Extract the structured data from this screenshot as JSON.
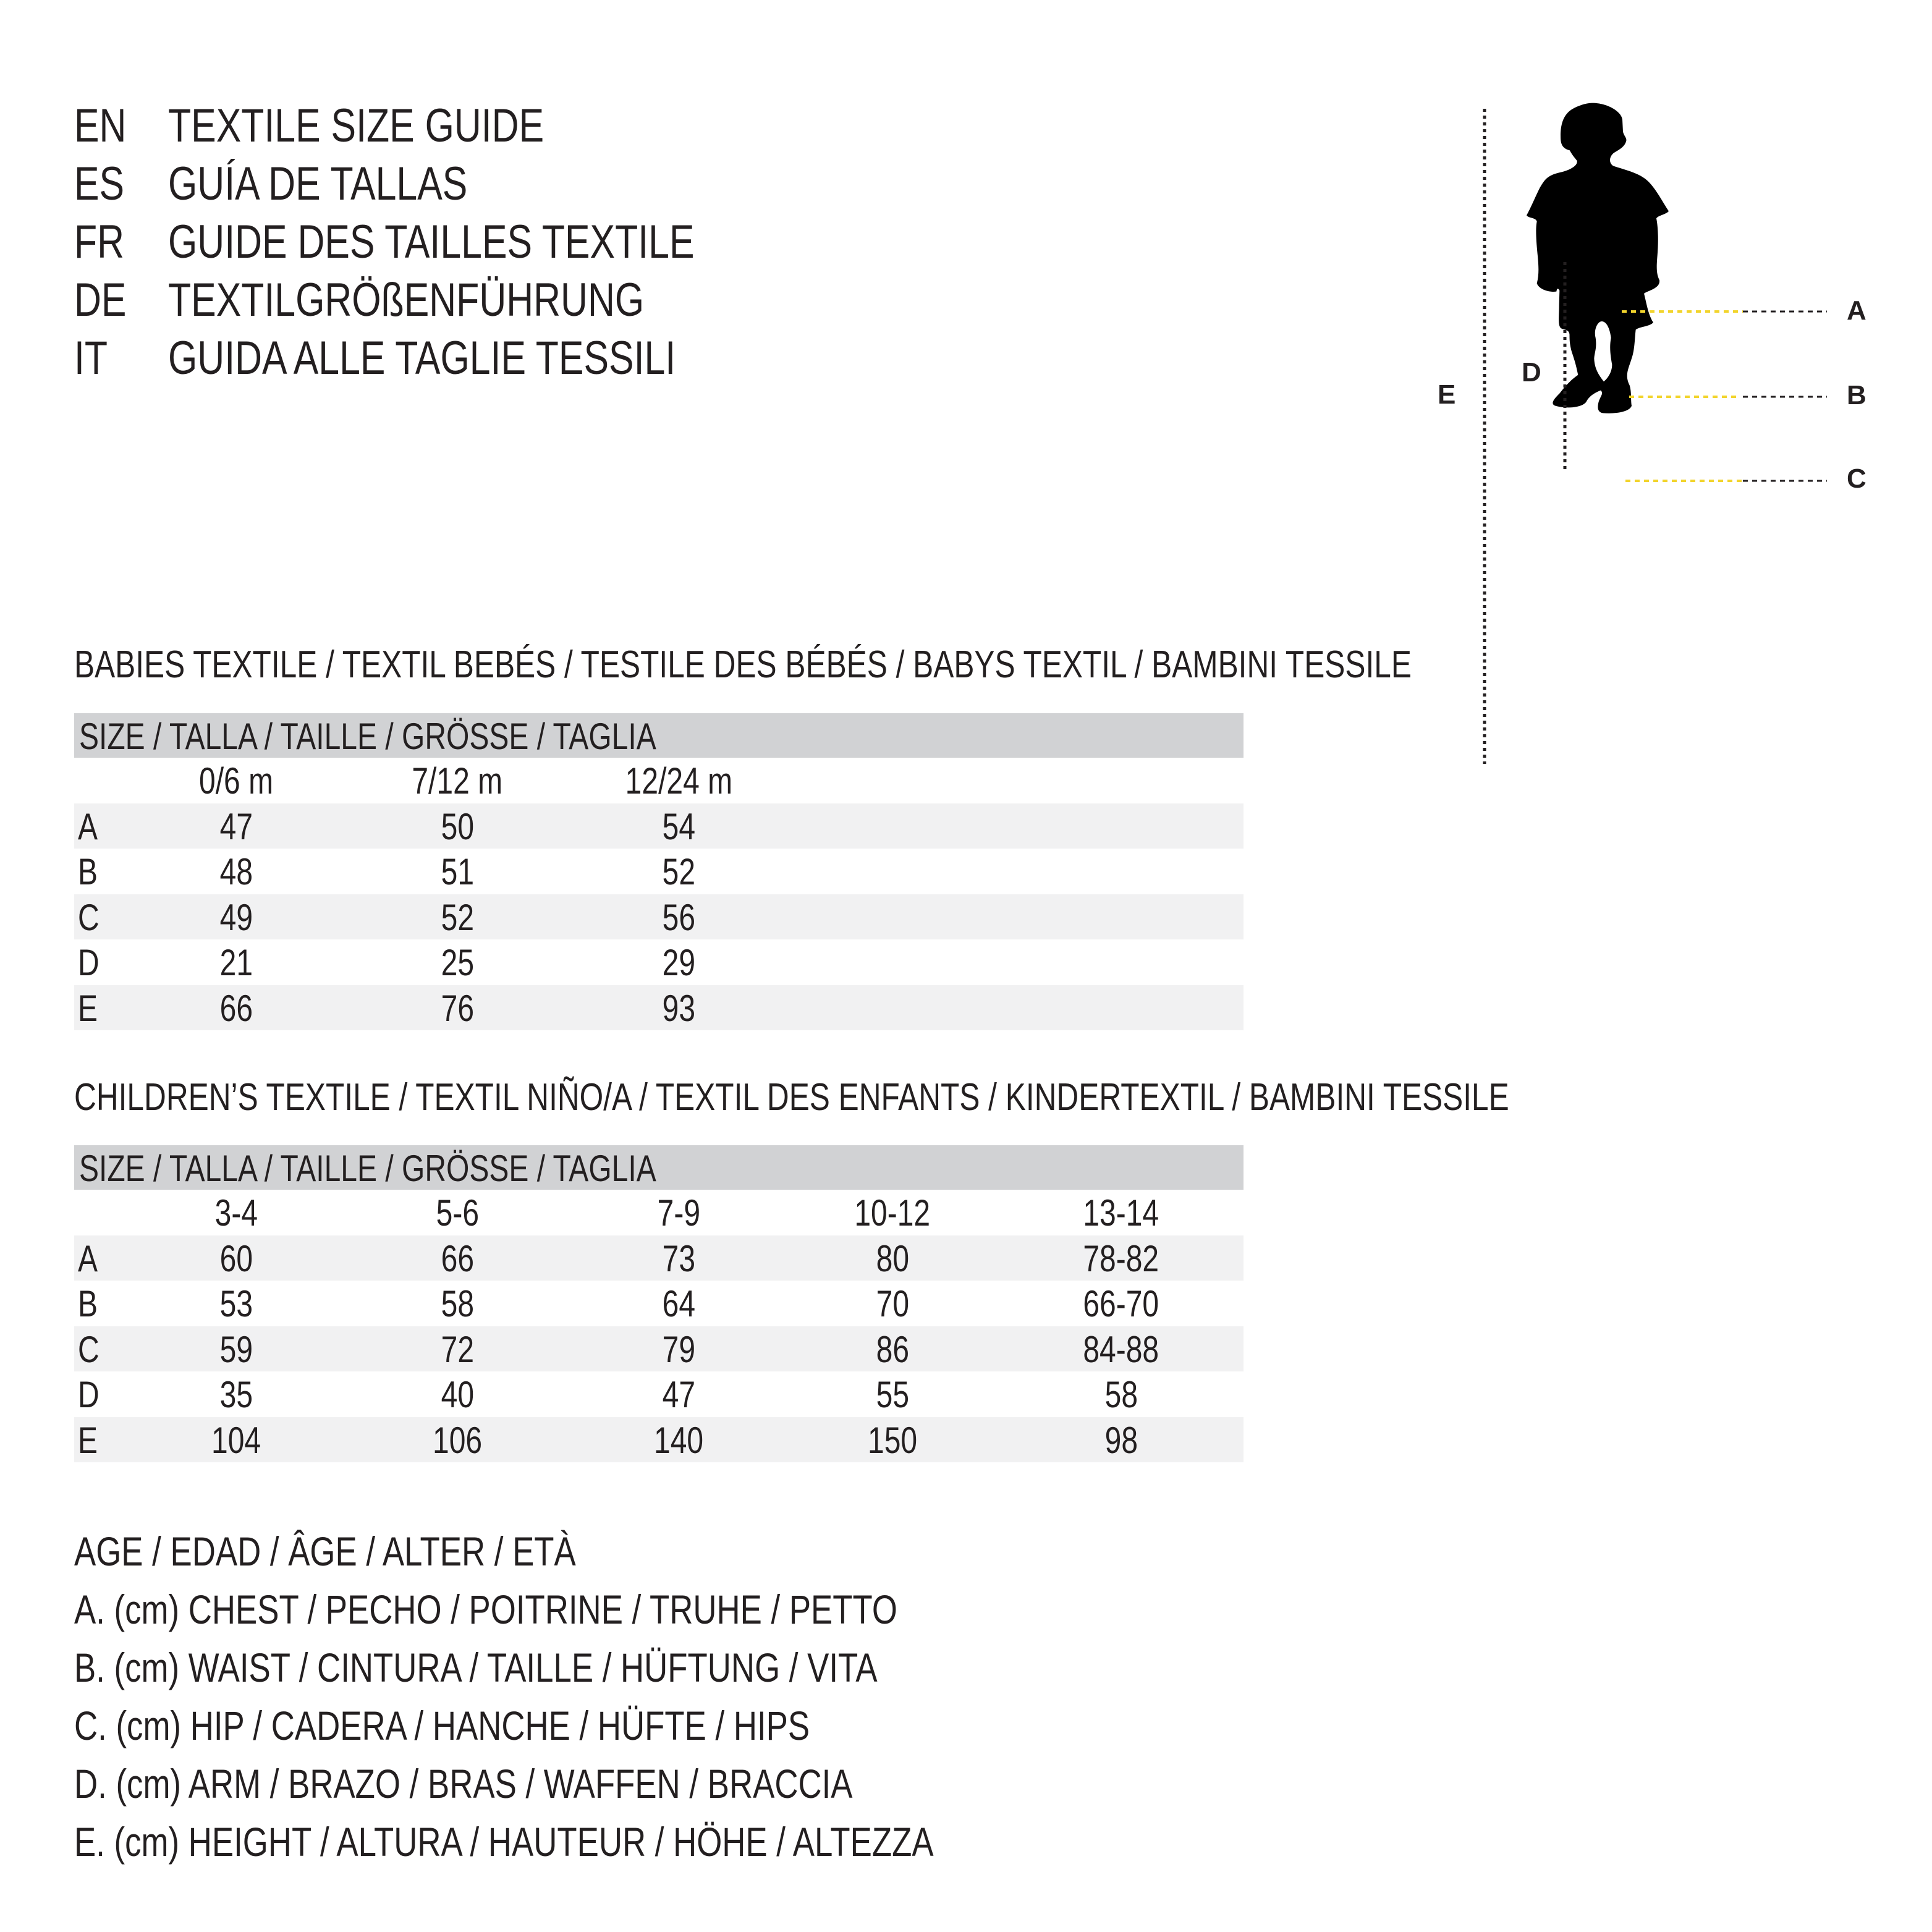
{
  "titles": [
    {
      "code": "EN",
      "text": "TEXTILE SIZE GUIDE"
    },
    {
      "code": "ES",
      "text": "GUÍA DE TALLAS"
    },
    {
      "code": "FR",
      "text": "GUIDE DES TAILLES TEXTILE"
    },
    {
      "code": "DE",
      "text": "TEXTILGRÖßENFÜHRUNG"
    },
    {
      "code": "IT",
      "text": "GUIDA ALLE TAGLIE TESSILI"
    }
  ],
  "babies": {
    "title": "BABIES TEXTILE / TEXTIL BEBÉS / TESTILE DES BÉBÉS / BABYS TEXTIL / BAMBINI TESSILE",
    "header": "SIZE / TALLA / TAILLE / GRÖSSE / TAGLIA",
    "columns": [
      "0/6 m",
      "7/12 m",
      "12/24 m"
    ],
    "rows": [
      {
        "label": "A",
        "values": [
          "47",
          "50",
          "54"
        ]
      },
      {
        "label": "B",
        "values": [
          "48",
          "51",
          "52"
        ]
      },
      {
        "label": "C",
        "values": [
          "49",
          "52",
          "56"
        ]
      },
      {
        "label": "D",
        "values": [
          "21",
          "25",
          "29"
        ]
      },
      {
        "label": "E",
        "values": [
          "66",
          "76",
          "93"
        ]
      }
    ]
  },
  "children": {
    "title": "CHILDREN’S TEXTILE / TEXTIL NIÑO/A / TEXTIL DES ENFANTS / KINDERTEXTIL / BAMBINI TESSILE",
    "header": "SIZE / TALLA / TAILLE / GRÖSSE / TAGLIA",
    "columns": [
      "3-4",
      "5-6",
      "7-9",
      "10-12",
      "13-14"
    ],
    "rows": [
      {
        "label": "A",
        "values": [
          "60",
          "66",
          "73",
          "80",
          "78-82"
        ]
      },
      {
        "label": "B",
        "values": [
          "53",
          "58",
          "64",
          "70",
          "66-70"
        ]
      },
      {
        "label": "C",
        "values": [
          "59",
          "72",
          "79",
          "86",
          "84-88"
        ]
      },
      {
        "label": "D",
        "values": [
          "35",
          "40",
          "47",
          "55",
          "58"
        ]
      },
      {
        "label": "E",
        "values": [
          "104",
          "106",
          "140",
          "150",
          "98"
        ]
      }
    ]
  },
  "legend": [
    "AGE / EDAD / ÂGE / ALTER / ETÀ",
    "A. (cm) CHEST / PECHO / POITRINE / TRUHE / PETTO",
    "B. (cm) WAIST / CINTURA / TAILLE / HÜFTUNG / VITA",
    "C. (cm) HIP / CADERA / HANCHE / HÜFTE / HIPS",
    "D. (cm) ARM / BRAZO / BRAS / WAFFEN / BRACCIA",
    "E. (cm) HEIGHT / ALTURA / HAUTEUR / HÖHE / ALTEZZA"
  ],
  "figure": {
    "labels": {
      "a": "A",
      "b": "B",
      "c": "C",
      "d": "D",
      "e": "E"
    },
    "icon": "child-silhouette-icon",
    "colors": {
      "measure_line": "#f2d42c",
      "guide_line": "#231f20",
      "silhouette": "#000000",
      "header_bar": "#d1d2d4",
      "row_shade": "#f1f1f2"
    }
  }
}
